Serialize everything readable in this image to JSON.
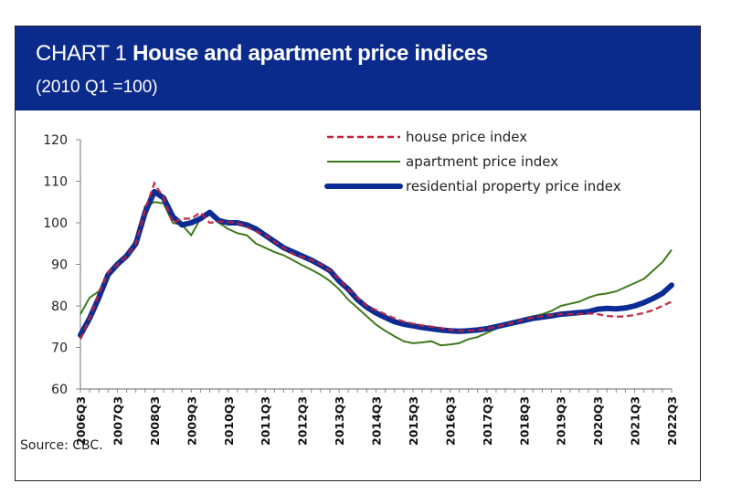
{
  "header": {
    "title_lead": "CHART 1",
    "title_main": "House and apartment price indices",
    "subtitle": "(2010 Q1 =100)"
  },
  "source": "Source: CBC.",
  "colors": {
    "header_bg": "#0a2a8c",
    "house": "#c0203a",
    "apartment": "#3f7a1c",
    "residential": "#0b2c94"
  },
  "chart_data": {
    "type": "line",
    "title": "CHART 1 House and apartment price indices",
    "subtitle": "(2010 Q1 =100)",
    "xlabel": "",
    "ylabel": "",
    "ylim": [
      60,
      120
    ],
    "yticks": [
      60,
      70,
      80,
      90,
      100,
      110,
      120
    ],
    "grid": false,
    "legend_position": "top-right",
    "xtick_labels": [
      "2006Q3",
      "2007Q3",
      "2008Q3",
      "2009Q3",
      "2010Q3",
      "2011Q3",
      "2012Q3",
      "2013Q3",
      "2014Q3",
      "2015Q3",
      "2016Q3",
      "2017Q3",
      "2018Q3",
      "2019Q3",
      "2020Q3",
      "2021Q3",
      "2022Q3"
    ],
    "x_start": "2006Q3",
    "x_end": "2022Q3",
    "x_frequency": "quarterly",
    "series": [
      {
        "name": "house price index",
        "style": "dashed",
        "values": [
          72,
          77,
          83,
          88,
          90,
          92,
          95,
          103,
          109.5,
          106,
          100,
          101,
          101,
          102.5,
          100,
          100.3,
          100.2,
          100,
          99,
          98,
          97,
          95.5,
          94,
          92.5,
          91.8,
          91,
          90,
          88.5,
          86.5,
          84,
          82,
          80,
          79,
          78,
          77,
          76.2,
          75.7,
          75.3,
          75,
          74.7,
          74.2,
          74,
          74,
          74.2,
          74.5,
          75,
          75.5,
          76,
          76.7,
          77.2,
          77.5,
          77.8,
          78,
          78,
          78,
          78.2,
          78,
          77.6,
          77.4,
          77.5,
          77.8,
          78.3,
          79,
          80,
          81
        ]
      },
      {
        "name": "apartment price index",
        "style": "solid-thin",
        "values": [
          78,
          82,
          83.5,
          87.5,
          90,
          92,
          96,
          104,
          105,
          104.7,
          100,
          99.5,
          97,
          101,
          102.5,
          100,
          98.5,
          97.5,
          97,
          95,
          94,
          93,
          92.2,
          91,
          89.8,
          88.7,
          87.5,
          86,
          84,
          81.5,
          79.5,
          77.5,
          75.5,
          74,
          72.7,
          71.5,
          71,
          71.2,
          71.5,
          70.5,
          70.7,
          71,
          72,
          72.5,
          73.5,
          74.5,
          75.5,
          76.3,
          77,
          77.5,
          78,
          78.8,
          80,
          80.5,
          81,
          82,
          82.7,
          83,
          83.5,
          84.5,
          85.5,
          86.5,
          88.5,
          90.5,
          93.5
        ]
      },
      {
        "name": "residential property price index",
        "style": "solid-thick",
        "values": [
          73,
          77,
          82,
          87.5,
          90,
          92,
          95,
          102.5,
          107.5,
          106,
          101.5,
          99.5,
          100,
          101,
          102.5,
          100.5,
          100,
          100,
          99.5,
          98.5,
          97,
          95.5,
          94,
          93,
          92,
          91,
          89.8,
          88.5,
          86,
          84,
          81.5,
          79.7,
          78.3,
          77.2,
          76.2,
          75.6,
          75.2,
          74.8,
          74.5,
          74.2,
          74,
          73.9,
          74,
          74.2,
          74.5,
          75,
          75.5,
          76,
          76.5,
          77,
          77.3,
          77.6,
          78,
          78.2,
          78.4,
          78.6,
          79.2,
          79.4,
          79.3,
          79.5,
          80,
          80.8,
          81.8,
          83,
          85
        ]
      }
    ]
  }
}
